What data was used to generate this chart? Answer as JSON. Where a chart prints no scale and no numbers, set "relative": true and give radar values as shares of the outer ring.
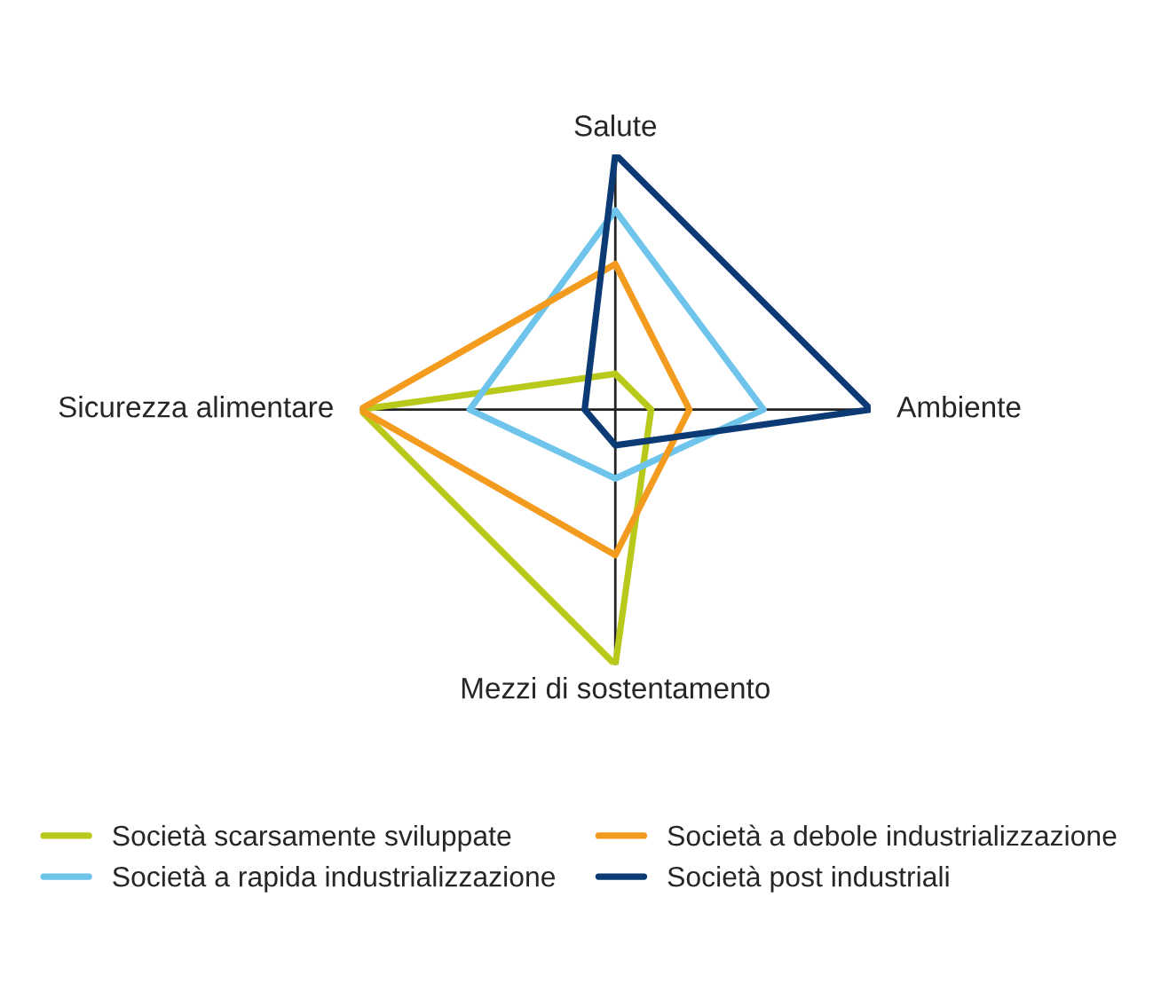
{
  "chart_data": {
    "type": "radar",
    "relative": true,
    "categories": [
      "Salute",
      "Ambiente",
      "Mezzi di sostentamento",
      "Sicurezza alimentare"
    ],
    "series": [
      {
        "name": "Società scarsamente sviluppate",
        "color": "#b9c91c",
        "values": [
          0.14,
          0.14,
          1.0,
          1.0
        ]
      },
      {
        "name": "Società a rapida industrializzazione",
        "color": "#6ec4ea",
        "values": [
          0.78,
          0.58,
          0.27,
          0.57
        ]
      },
      {
        "name": "Società a debole industrializzazione",
        "color": "#f39b1e",
        "values": [
          0.57,
          0.29,
          0.57,
          1.0
        ]
      },
      {
        "name": "Società post industriali",
        "color": "#0c3a74",
        "values": [
          1.0,
          1.0,
          0.14,
          0.12
        ]
      }
    ],
    "legend": "bottom"
  }
}
